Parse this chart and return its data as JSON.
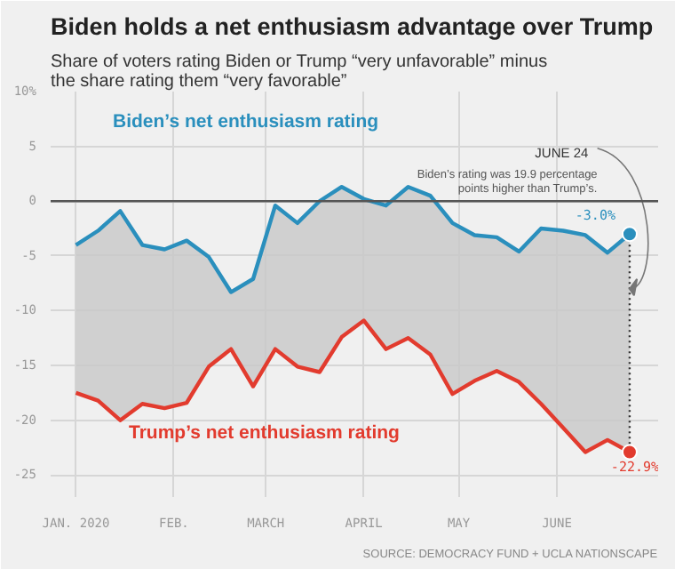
{
  "chart_data": {
    "type": "line",
    "title": "Biden holds a net enthusiasm advantage over Trump",
    "subtitle": "Share of voters rating Biden or Trump “very unfavorable” minus the share rating them “very favorable”",
    "x": [
      "2020-01-01",
      "2020-01-08",
      "2020-01-15",
      "2020-01-22",
      "2020-01-29",
      "2020-02-05",
      "2020-02-12",
      "2020-02-19",
      "2020-02-26",
      "2020-03-04",
      "2020-03-11",
      "2020-03-18",
      "2020-03-25",
      "2020-04-01",
      "2020-04-08",
      "2020-04-15",
      "2020-04-22",
      "2020-04-29",
      "2020-05-06",
      "2020-05-13",
      "2020-05-20",
      "2020-05-27",
      "2020-06-03",
      "2020-06-10",
      "2020-06-17",
      "2020-06-24"
    ],
    "series": [
      {
        "name": "Biden’s net enthusiasm rating",
        "color": "#2a8fbd",
        "values": [
          -4.0,
          -2.7,
          -0.9,
          -4.0,
          -4.4,
          -3.6,
          -5.1,
          -8.3,
          -7.1,
          -0.4,
          -2.0,
          0,
          1.3,
          0.2,
          -0.4,
          1.3,
          0.5,
          -2.0,
          -3.1,
          -3.3,
          -4.6,
          -2.5,
          -2.7,
          -3.1,
          -4.7,
          -3.0
        ],
        "upper": [
          -4.0,
          -2.7,
          -0.9,
          -4.0,
          -4.4,
          -3.6,
          -5.1,
          -8.3,
          -7.1,
          -0.4,
          -2.0,
          0,
          1.3,
          0.2,
          -0.4,
          1.3,
          0.5,
          -2.0,
          -3.1,
          -3.3,
          -4.6,
          -2.5,
          -2.7,
          -3.1,
          -4.7,
          -3.0
        ],
        "lower": [
          -17.5,
          -18.2,
          -20.0,
          -18.5,
          -18.9,
          -18.4,
          -15.1,
          -13.5,
          -16.9,
          -13.5,
          -15.1,
          -15.6,
          -12.4,
          -10.9,
          -13.5,
          -12.5,
          -14.0,
          -17.6,
          -16.4,
          -15.5,
          -16.5,
          -18.5,
          -20.7,
          -22.9,
          -21.8,
          -22.9
        ]
      },
      {
        "name": "Trump’s net enthusiasm rating",
        "color": "#e23b2e",
        "values": [
          -17.5,
          -18.2,
          -20.0,
          -18.5,
          -18.9,
          -18.4,
          -15.1,
          -13.5,
          -16.9,
          -13.5,
          -15.1,
          -15.6,
          -12.4,
          -10.9,
          -13.5,
          -12.5,
          -14.0,
          -17.6,
          -16.4,
          -15.5,
          -16.5,
          -18.5,
          -20.7,
          -22.9,
          -21.8,
          -22.9
        ]
      }
    ],
    "xlim": [
      "2019-12-24",
      "2020-07-03"
    ],
    "xticks": [
      {
        "value": "2020-01-01",
        "label": "JAN. 2020"
      },
      {
        "value": "2020-02-01",
        "label": "FEB."
      },
      {
        "value": "2020-03-01",
        "label": "MARCH"
      },
      {
        "value": "2020-04-01",
        "label": "APRIL"
      },
      {
        "value": "2020-05-01",
        "label": "MAY"
      },
      {
        "value": "2020-06-01",
        "label": "JUNE"
      }
    ],
    "ylim": [
      -27,
      10
    ],
    "yticks": [
      {
        "value": 10,
        "label": "10%"
      },
      5,
      0,
      -5,
      -10,
      -15,
      -20,
      -25
    ],
    "grid": true,
    "marker": "none",
    "line_style": "solid",
    "ref_lines": [
      {
        "axis": "y",
        "value": 0,
        "label": null,
        "color": "#555555",
        "line_style": "solid"
      }
    ],
    "annotations": [
      {
        "text": "JUNE 24",
        "x": "2020-06-24",
        "y": -8
      },
      "Biden’s rating was 19.9 percentage points higher than Trump’s.",
      {
        "text": "-3.0%",
        "x": "2020-06-24",
        "y": -3.0
      },
      {
        "text": "-22.9%",
        "x": "2020-06-24",
        "y": -22.9
      },
      "SOURCE: DEMOCRACY FUND + UCLA NATIONSCAPE"
    ]
  }
}
